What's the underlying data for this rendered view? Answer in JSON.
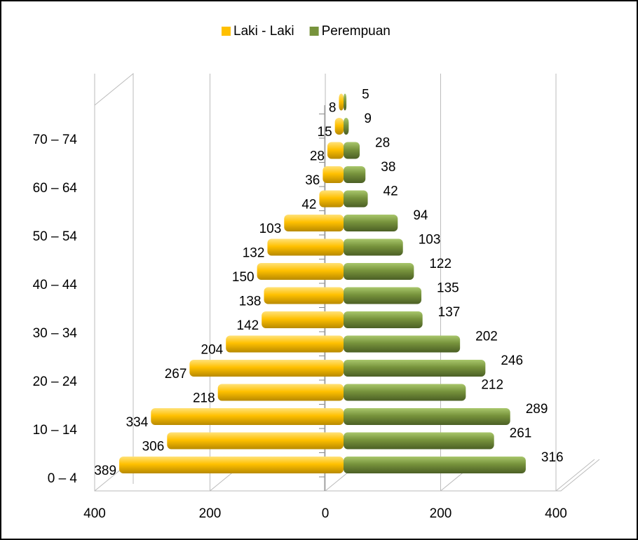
{
  "chart_data": {
    "type": "pyramid",
    "categories": [
      "0 – 4",
      null,
      "10 – 14",
      null,
      "20 – 24",
      null,
      "30 – 34",
      null,
      "40 – 44",
      null,
      "50 – 54",
      null,
      "60 – 64",
      null,
      "70 – 74",
      null
    ],
    "series": [
      {
        "name": "Laki - Laki",
        "color": "#ffc000",
        "values": [
          -389,
          -306,
          -334,
          -218,
          -267,
          -204,
          -142,
          -138,
          -150,
          -132,
          -103,
          -42,
          -36,
          -28,
          -15,
          -8
        ],
        "value_labels": [
          "389",
          "306",
          "334",
          "218",
          "267",
          "204",
          "142",
          "138",
          "150",
          "132",
          "103",
          "42",
          "36",
          "28",
          "15",
          "8"
        ]
      },
      {
        "name": "Perempuan",
        "color": "#77933c",
        "values": [
          316,
          261,
          289,
          212,
          246,
          202,
          137,
          135,
          122,
          103,
          94,
          42,
          38,
          28,
          9,
          5
        ]
      }
    ],
    "xlim": [
      -400,
      400
    ],
    "xticks": [
      {
        "value": -400,
        "label": "400"
      },
      {
        "value": -200,
        "label": "200"
      },
      0,
      200,
      400
    ],
    "grid": true,
    "legend": "top"
  }
}
